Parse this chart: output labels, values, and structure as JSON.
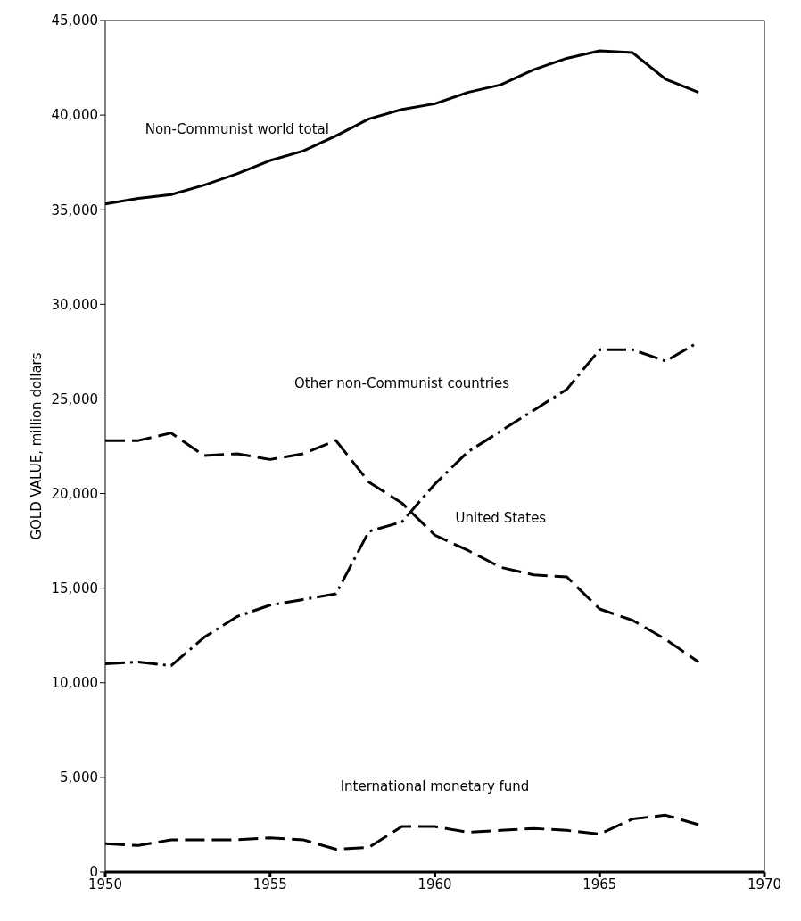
{
  "chart_data": {
    "type": "line",
    "ylabel": "GOLD VALUE, million dollars",
    "x": [
      1950,
      1951,
      1952,
      1953,
      1954,
      1955,
      1956,
      1957,
      1958,
      1959,
      1960,
      1961,
      1962,
      1963,
      1964,
      1965,
      1966,
      1967,
      1968
    ],
    "xlim": [
      1950,
      1970
    ],
    "xticks": [
      1950,
      1955,
      1960,
      1965,
      1970
    ],
    "ylim": [
      0,
      45000
    ],
    "yticks": [
      {
        "value": 0,
        "label": "0"
      },
      {
        "value": 5000,
        "label": "5,000"
      },
      {
        "value": 10000,
        "label": "10,000"
      },
      {
        "value": 15000,
        "label": "15,000"
      },
      {
        "value": 20000,
        "label": "20,000"
      },
      {
        "value": 25000,
        "label": "25,000"
      },
      {
        "value": 30000,
        "label": "30,000"
      },
      {
        "value": 35000,
        "label": "35,000"
      },
      {
        "value": 40000,
        "label": "40,000"
      },
      {
        "value": 45000,
        "label": "45,000"
      }
    ],
    "marker": "none",
    "series": [
      {
        "name": "Non-Communist world total",
        "color": "#000000",
        "line_style": "solid",
        "values": [
          35300,
          35600,
          35800,
          36300,
          36900,
          37600,
          38100,
          38900,
          39800,
          40300,
          40600,
          41200,
          41600,
          42400,
          43000,
          43400,
          43300,
          41900,
          41200
        ]
      },
      {
        "name": "Other non-Communist countries",
        "color": "#000000",
        "line_style": "dashdot",
        "values": [
          11000,
          11100,
          10900,
          12400,
          13500,
          14100,
          14400,
          14700,
          18000,
          18500,
          20500,
          22200,
          23300,
          24400,
          25500,
          27600,
          27600,
          27000,
          28000
        ]
      },
      {
        "name": "United States",
        "color": "#000000",
        "line_style": "dashed",
        "values": [
          22800,
          22800,
          23200,
          22000,
          22100,
          21800,
          22100,
          22800,
          20600,
          19500,
          17800,
          17000,
          16100,
          15700,
          15600,
          13900,
          13300,
          12300,
          11100
        ]
      },
      {
        "name": "International monetary fund",
        "color": "#000000",
        "line_style": "dashed",
        "values": [
          1500,
          1400,
          1700,
          1700,
          1700,
          1800,
          1700,
          1200,
          1300,
          2400,
          2400,
          2100,
          2200,
          2300,
          2200,
          2000,
          2800,
          3000,
          2500
        ]
      }
    ]
  }
}
